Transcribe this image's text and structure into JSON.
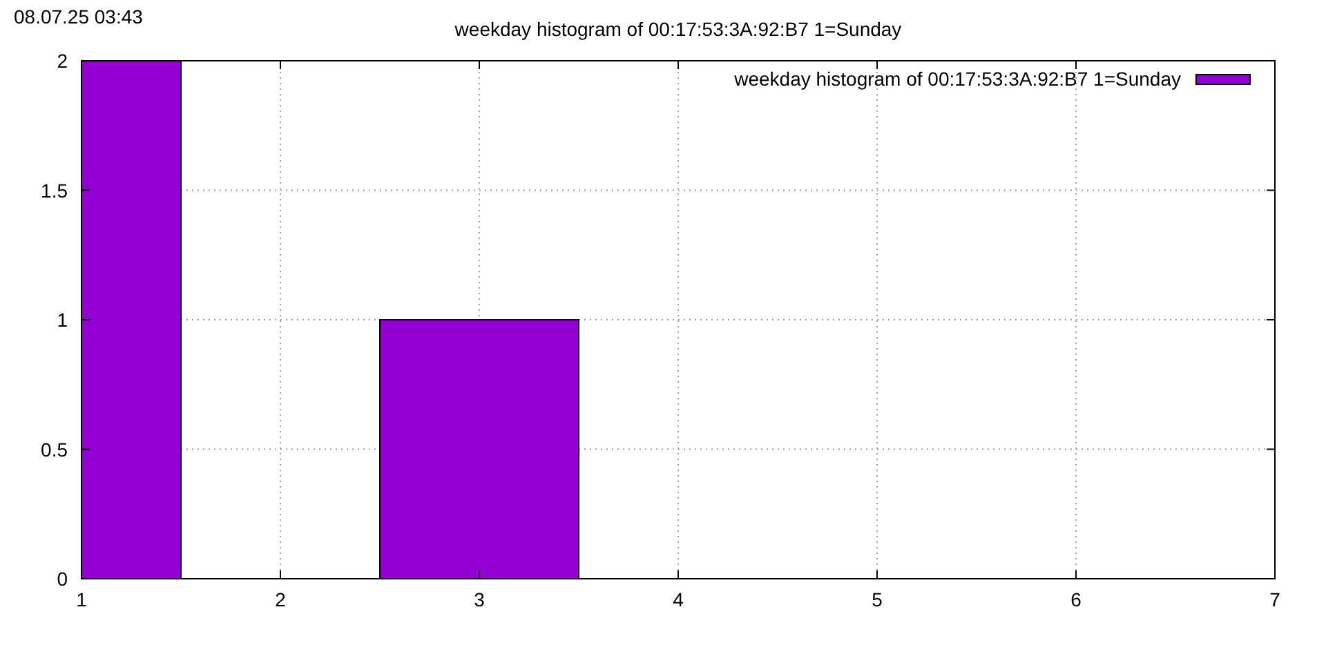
{
  "chart_data": {
    "type": "histogram",
    "title": "weekday histogram of 00:17:53:3A:92:B7 1=Sunday",
    "annotations": [
      "08.07.25 03:43"
    ],
    "series": [
      {
        "name": "weekday histogram of 00:17:53:3A:92:B7 1=Sunday",
        "color": "#9400d3",
        "values": [
          2,
          0,
          1
        ]
      }
    ],
    "bins": [
      1,
      1.5,
      2.5,
      3.5
    ],
    "xlim": [
      1,
      7
    ],
    "xticks": [
      1,
      2,
      3,
      4,
      5,
      6,
      7
    ],
    "ylim": [
      0,
      2
    ],
    "yticks": [
      0,
      0.5,
      1,
      1.5,
      2
    ],
    "grid": true,
    "legend": "top right"
  }
}
